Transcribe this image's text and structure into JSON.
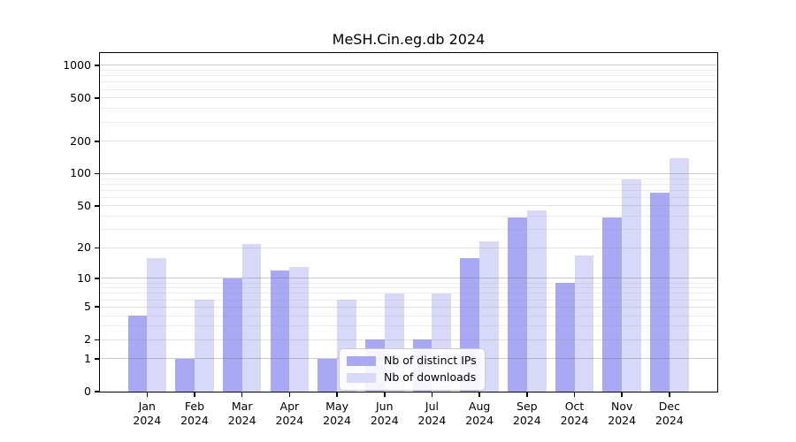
{
  "figure": {
    "title": "MeSH.Cin.eg.db 2024"
  },
  "chart_data": {
    "type": "bar",
    "title": "MeSH.Cin.eg.db 2024",
    "x_months": [
      "Jan",
      "Feb",
      "Mar",
      "Apr",
      "May",
      "Jun",
      "Jul",
      "Aug",
      "Sep",
      "Oct",
      "Nov",
      "Dec"
    ],
    "x_year": "2024",
    "categories": [
      "Jan 2024",
      "Feb 2024",
      "Mar 2024",
      "Apr 2024",
      "May 2024",
      "Jun 2024",
      "Jul 2024",
      "Aug 2024",
      "Sep 2024",
      "Oct 2024",
      "Nov 2024",
      "Dec 2024"
    ],
    "series": [
      {
        "name": "Nb of distinct IPs",
        "color": "#a8a8f4",
        "values": [
          4,
          1,
          10,
          12,
          1,
          2,
          2,
          16,
          39,
          9,
          39,
          67
        ]
      },
      {
        "name": "Nb of downloads",
        "color": "#d8d8f9",
        "values": [
          16,
          6,
          22,
          13,
          6,
          7,
          7,
          23,
          45,
          17,
          88,
          140
        ]
      }
    ],
    "y_scale": "log10(1+x)",
    "y_ticks": [
      0,
      1,
      2,
      5,
      10,
      20,
      50,
      100,
      200,
      500,
      1000
    ],
    "y_minor_ticks": [
      3,
      4,
      6,
      7,
      8,
      9,
      30,
      40,
      60,
      70,
      80,
      90,
      300,
      400,
      600,
      700,
      800,
      900
    ],
    "ylim": [
      0,
      1300
    ],
    "grid": true,
    "legend_position": "lower center"
  }
}
